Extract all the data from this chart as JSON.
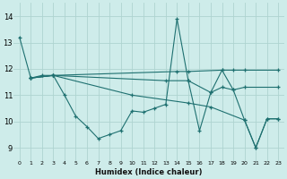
{
  "xlabel": "Humidex (Indice chaleur)",
  "bg_color": "#ceecea",
  "grid_color": "#aed4d0",
  "line_color": "#1e7070",
  "xlim": [
    -0.5,
    23.5
  ],
  "ylim": [
    8.5,
    14.5
  ],
  "yticks": [
    9,
    10,
    11,
    12,
    13,
    14
  ],
  "xtick_labels": [
    "0",
    "1",
    "2",
    "3",
    "4",
    "5",
    "6",
    "7",
    "8",
    "9",
    "10",
    "11",
    "12",
    "13",
    "14",
    "15",
    "16",
    "17",
    "18",
    "19",
    "20",
    "21",
    "22",
    "23"
  ],
  "lines": [
    {
      "x": [
        0,
        1,
        2,
        3,
        4,
        5,
        6,
        7,
        8,
        9,
        10,
        11,
        12,
        13,
        14,
        15,
        16,
        17,
        18,
        19,
        20,
        21,
        22,
        23
      ],
      "y": [
        13.2,
        11.65,
        11.75,
        11.75,
        11.0,
        10.2,
        9.8,
        9.35,
        9.5,
        9.65,
        10.4,
        10.35,
        10.5,
        10.65,
        13.9,
        11.55,
        9.65,
        11.1,
        11.95,
        11.2,
        10.05,
        9.0,
        10.1,
        10.1
      ]
    },
    {
      "x": [
        1,
        3,
        14,
        15,
        18,
        19,
        20,
        23
      ],
      "y": [
        11.65,
        11.75,
        11.9,
        11.9,
        11.95,
        11.95,
        11.95,
        11.95
      ]
    },
    {
      "x": [
        1,
        3,
        13,
        15,
        17,
        18,
        19,
        20,
        23
      ],
      "y": [
        11.65,
        11.75,
        11.55,
        11.55,
        11.1,
        11.3,
        11.2,
        11.3,
        11.3
      ]
    },
    {
      "x": [
        1,
        3,
        10,
        15,
        17,
        20,
        21,
        22,
        23
      ],
      "y": [
        11.65,
        11.75,
        11.0,
        10.7,
        10.55,
        10.05,
        9.0,
        10.1,
        10.1
      ]
    }
  ]
}
